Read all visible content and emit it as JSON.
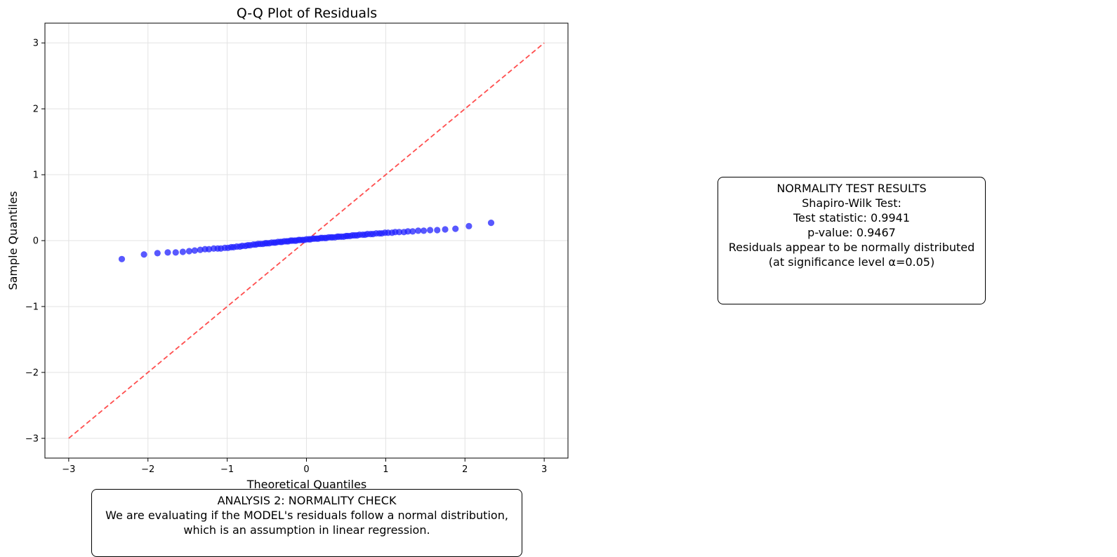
{
  "chart_data": {
    "type": "scatter",
    "title": "Q-Q Plot of Residuals",
    "xlabel": "Theoretical Quantiles",
    "ylabel": "Sample Quantiles",
    "xlim": [
      -3.3,
      3.3
    ],
    "ylim": [
      -3.3,
      3.3
    ],
    "xticks": [
      -3,
      -2,
      -1,
      0,
      1,
      2,
      3
    ],
    "yticks": [
      -3,
      -2,
      -1,
      0,
      1,
      2,
      3
    ],
    "xtick_labels": [
      "−3",
      "−2",
      "−1",
      "0",
      "1",
      "2",
      "3"
    ],
    "ytick_labels": [
      "−3",
      "−2",
      "−1",
      "0",
      "1",
      "2",
      "3"
    ],
    "grid": true,
    "reference_line": {
      "x": [
        -3,
        3
      ],
      "y": [
        -3,
        3
      ],
      "color": "#ff3b3b",
      "style": "dashed"
    },
    "point_color": "#2020ff",
    "points": {
      "x": [
        -2.33,
        -2.05,
        -1.88,
        -1.75,
        -1.65,
        -1.56,
        -1.48,
        -1.41,
        -1.34,
        -1.28,
        -1.23,
        -1.17,
        -1.12,
        -1.08,
        -1.03,
        -0.99,
        -0.95,
        -0.92,
        -0.88,
        -0.84,
        -0.81,
        -0.77,
        -0.74,
        -0.71,
        -0.67,
        -0.64,
        -0.61,
        -0.58,
        -0.55,
        -0.52,
        -0.5,
        -0.47,
        -0.44,
        -0.41,
        -0.39,
        -0.36,
        -0.33,
        -0.31,
        -0.28,
        -0.25,
        -0.23,
        -0.2,
        -0.18,
        -0.15,
        -0.13,
        -0.1,
        -0.08,
        -0.05,
        -0.03,
        0.0,
        0.03,
        0.05,
        0.08,
        0.1,
        0.13,
        0.15,
        0.18,
        0.2,
        0.23,
        0.25,
        0.28,
        0.31,
        0.33,
        0.36,
        0.39,
        0.41,
        0.44,
        0.47,
        0.5,
        0.52,
        0.55,
        0.58,
        0.61,
        0.64,
        0.67,
        0.71,
        0.74,
        0.77,
        0.81,
        0.84,
        0.88,
        0.92,
        0.95,
        0.99,
        1.03,
        1.08,
        1.12,
        1.17,
        1.23,
        1.28,
        1.34,
        1.41,
        1.48,
        1.56,
        1.65,
        1.75,
        1.88,
        2.05,
        2.33
      ],
      "y": [
        -0.28,
        -0.21,
        -0.19,
        -0.18,
        -0.18,
        -0.17,
        -0.16,
        -0.15,
        -0.14,
        -0.13,
        -0.13,
        -0.12,
        -0.12,
        -0.12,
        -0.11,
        -0.11,
        -0.1,
        -0.1,
        -0.09,
        -0.09,
        -0.08,
        -0.08,
        -0.07,
        -0.07,
        -0.06,
        -0.06,
        -0.05,
        -0.05,
        -0.05,
        -0.04,
        -0.04,
        -0.04,
        -0.03,
        -0.03,
        -0.03,
        -0.02,
        -0.02,
        -0.02,
        -0.01,
        -0.01,
        -0.01,
        0.0,
        0.0,
        0.0,
        0.0,
        0.01,
        0.01,
        0.01,
        0.01,
        0.02,
        0.02,
        0.02,
        0.03,
        0.03,
        0.03,
        0.03,
        0.04,
        0.04,
        0.04,
        0.04,
        0.05,
        0.05,
        0.05,
        0.05,
        0.06,
        0.06,
        0.06,
        0.06,
        0.07,
        0.07,
        0.07,
        0.08,
        0.08,
        0.08,
        0.09,
        0.09,
        0.09,
        0.1,
        0.1,
        0.1,
        0.11,
        0.11,
        0.11,
        0.12,
        0.12,
        0.12,
        0.13,
        0.13,
        0.13,
        0.14,
        0.14,
        0.15,
        0.15,
        0.16,
        0.16,
        0.17,
        0.18,
        0.22,
        0.27
      ]
    }
  },
  "results_box": {
    "lines": [
      "NORMALITY TEST RESULTS",
      "",
      "Shapiro-Wilk Test:",
      "Test statistic: 0.9941",
      "p-value: 0.9467",
      "",
      "Residuals appear to be normally distributed",
      "(at significance level α=0.05)"
    ]
  },
  "analysis_box": {
    "lines": [
      "ANALYSIS 2: NORMALITY CHECK",
      "",
      "We are evaluating if the MODEL's residuals follow a normal distribution,",
      "which is an assumption in linear regression."
    ]
  }
}
